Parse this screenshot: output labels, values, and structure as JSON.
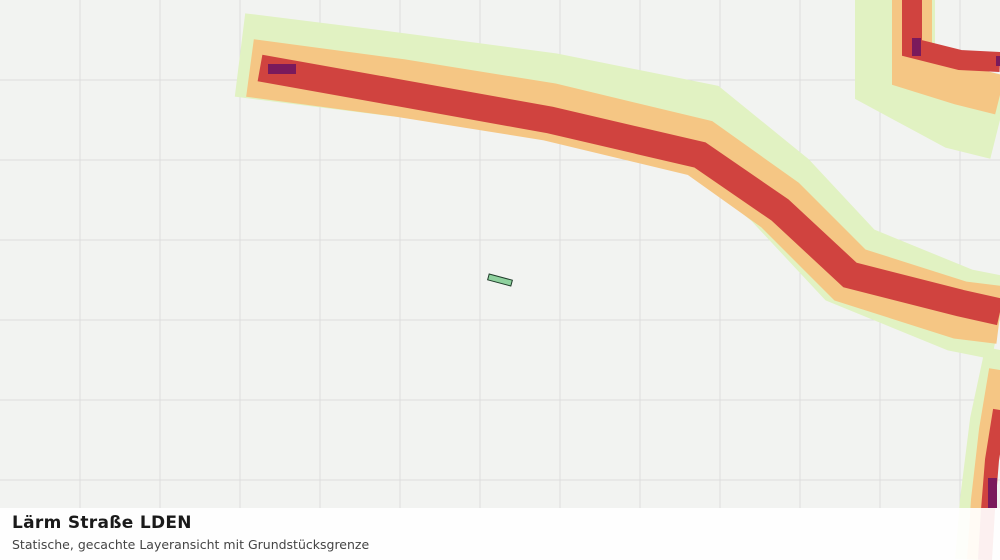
{
  "title": "Lärm Straße LDEN",
  "subtitle": "Statische, gecachte Layeransicht mit Grundstücksgrenze"
}
